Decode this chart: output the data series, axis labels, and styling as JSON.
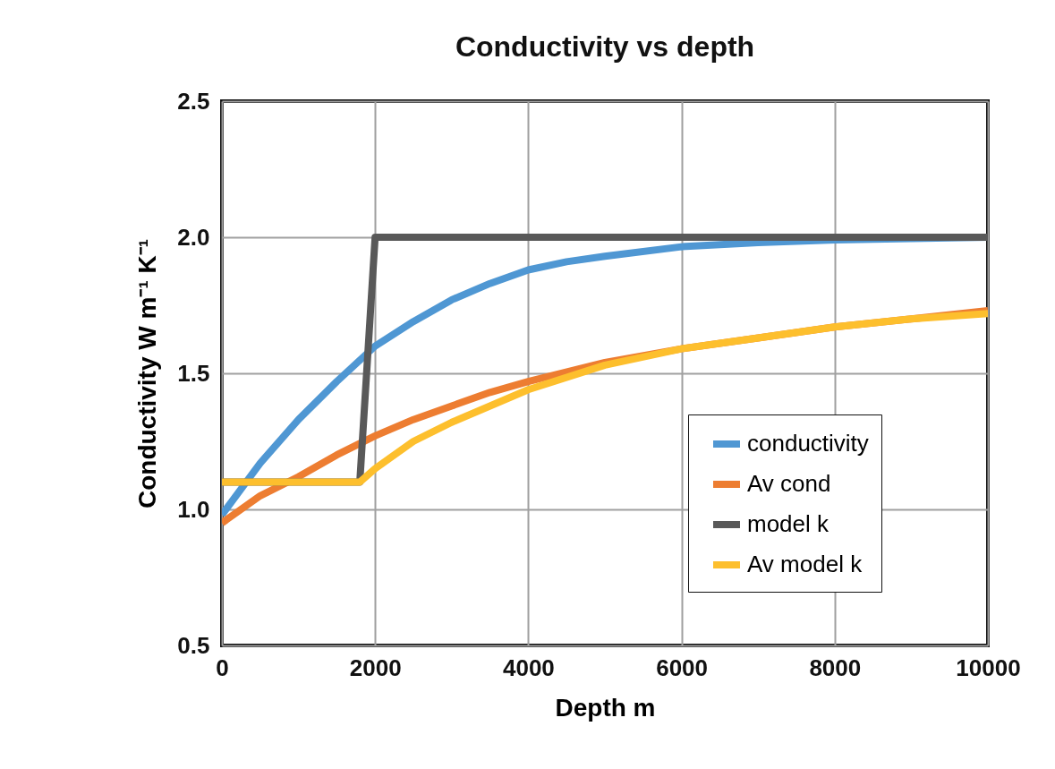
{
  "chart_data": {
    "type": "line",
    "title": "Conductivity vs depth",
    "xlabel": "Depth m",
    "ylabel": "Conductivity W m⁻¹ K⁻¹",
    "xlim": [
      0,
      10000
    ],
    "xticks": [
      0,
      2000,
      4000,
      6000,
      8000,
      10000
    ],
    "ylim": [
      0.5,
      2.5
    ],
    "yticks": [
      {
        "value": 0.5,
        "label": "0.5"
      },
      {
        "value": 1,
        "label": "1.0"
      },
      {
        "value": 1.5,
        "label": "1.5"
      },
      {
        "value": 2,
        "label": "2.0"
      },
      {
        "value": 2.5,
        "label": "2.5"
      }
    ],
    "grid": true,
    "legend": "bottom right",
    "line_style": "solid",
    "series": [
      {
        "name": "conductivity",
        "color": "#4f97d3",
        "x": [
          0,
          500,
          1000,
          1500,
          2000,
          2500,
          3000,
          3500,
          4000,
          4500,
          5000,
          6000,
          7000,
          8000,
          9000,
          10000
        ],
        "values": [
          0.98,
          1.17,
          1.33,
          1.47,
          1.6,
          1.69,
          1.77,
          1.83,
          1.88,
          1.91,
          1.93,
          1.965,
          1.98,
          1.99,
          1.995,
          2.0
        ]
      },
      {
        "name": "Av cond",
        "color": "#ed7d31",
        "x": [
          0,
          500,
          1000,
          1500,
          2000,
          2500,
          3000,
          3500,
          4000,
          5000,
          6000,
          7000,
          8000,
          9000,
          10000
        ],
        "values": [
          0.95,
          1.05,
          1.12,
          1.2,
          1.27,
          1.33,
          1.38,
          1.43,
          1.47,
          1.54,
          1.59,
          1.63,
          1.67,
          1.7,
          1.73
        ]
      },
      {
        "name": "model k",
        "color": "#595959",
        "x": [
          0,
          1800,
          2000,
          10000
        ],
        "values": [
          1.1,
          1.1,
          2.0,
          2.0
        ]
      },
      {
        "name": "Av model k",
        "color": "#fdbf2d",
        "x": [
          0,
          1800,
          2000,
          2500,
          3000,
          3500,
          4000,
          5000,
          6000,
          7000,
          8000,
          9000,
          10000
        ],
        "values": [
          1.1,
          1.1,
          1.15,
          1.25,
          1.32,
          1.38,
          1.44,
          1.53,
          1.59,
          1.63,
          1.67,
          1.7,
          1.72
        ]
      }
    ]
  }
}
